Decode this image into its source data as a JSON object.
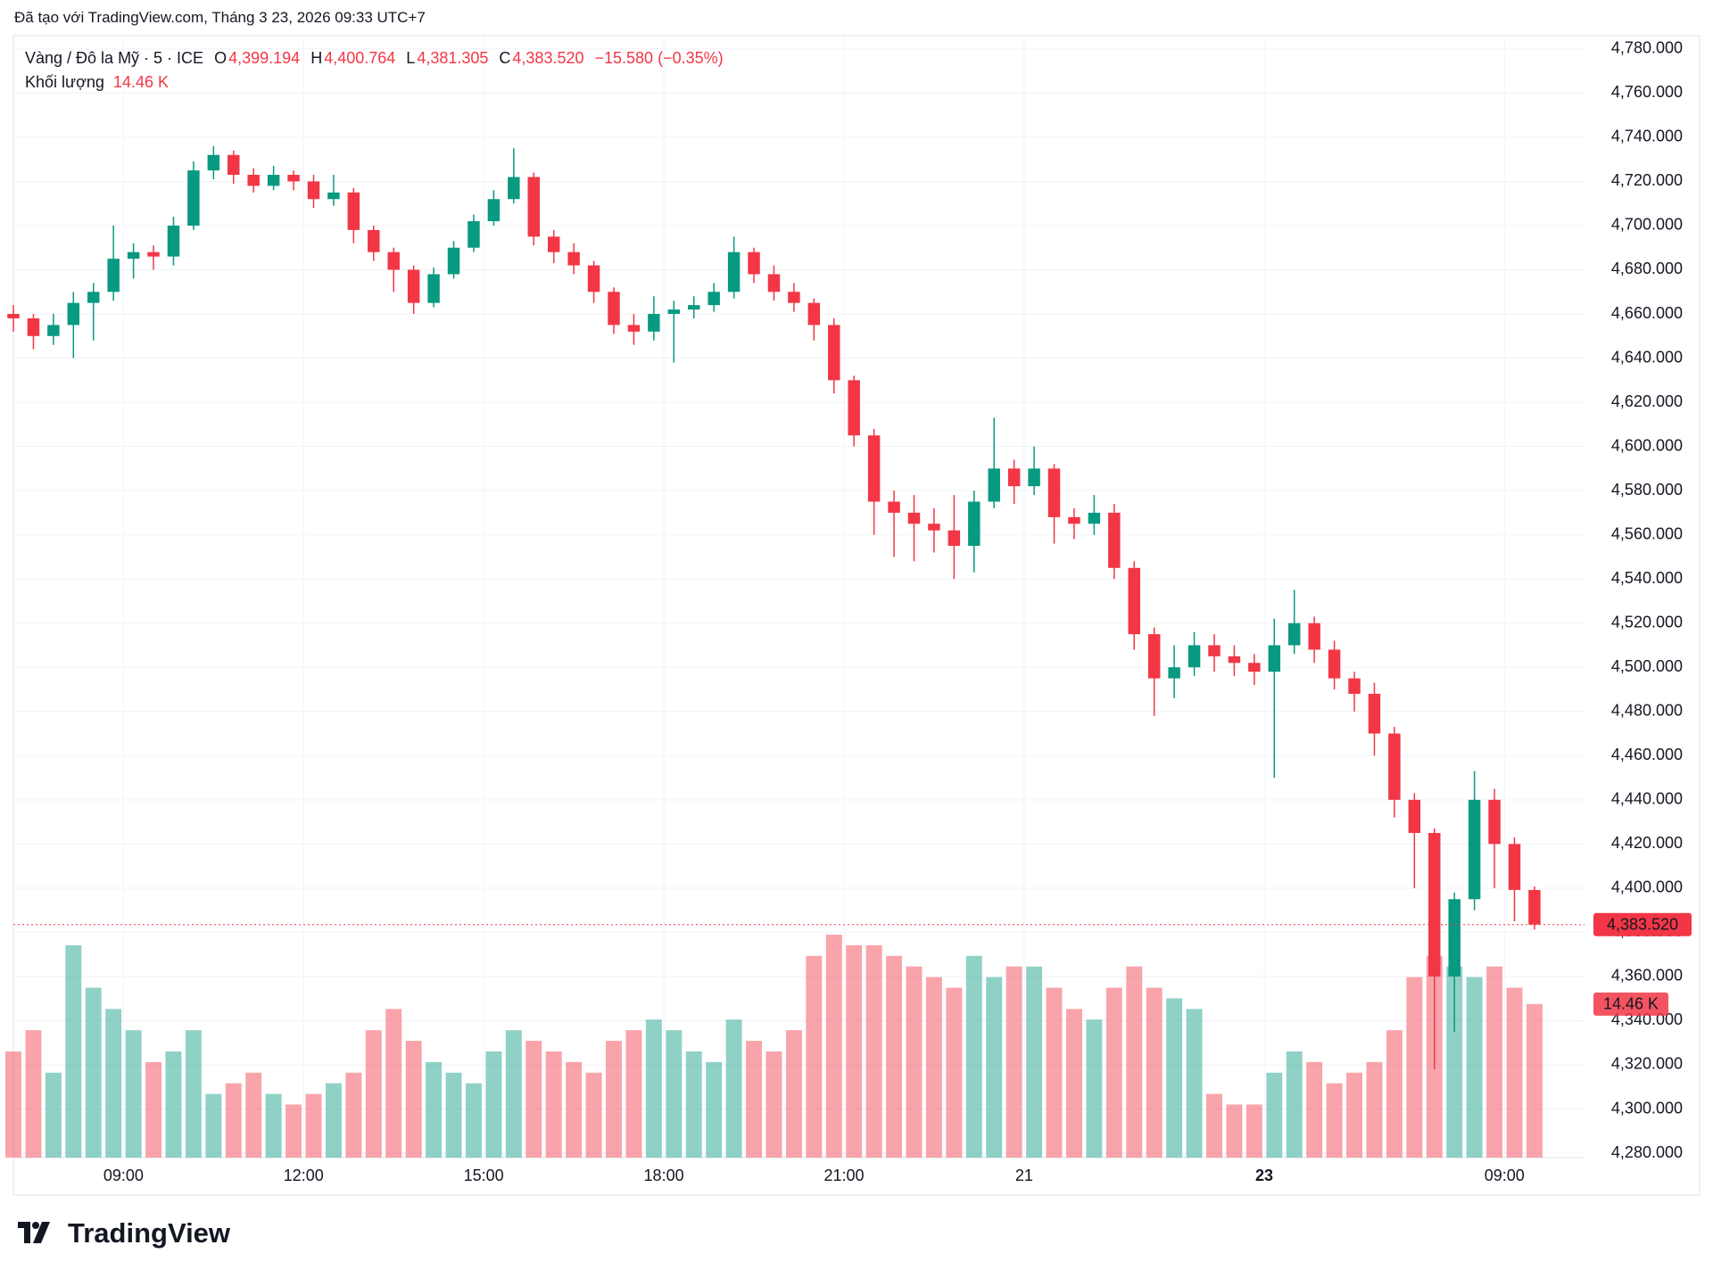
{
  "header": {
    "created": "Đã tạo với TradingView.com, Tháng 3 23, 2026 09:33 UTC+7",
    "symbol": "Vàng / Đô la Mỹ · 5 · ICE",
    "o_key": "O",
    "o": "4,399.194",
    "h_key": "H",
    "h": "4,400.764",
    "l_key": "L",
    "l": "4,381.305",
    "c_key": "C",
    "c": "4,383.520",
    "change": "−15.580 (−0.35%)",
    "volume_key": "Khối lượng",
    "volume": "14.46 K"
  },
  "chart_data": {
    "type": "candlestick",
    "up_color": "#089981",
    "down_color": "#f23645",
    "x": [
      0,
      4,
      8,
      12,
      16,
      20,
      24,
      28,
      32,
      36,
      40,
      44,
      48,
      52,
      56,
      60,
      64,
      68,
      72,
      76,
      80,
      84,
      88,
      92,
      96,
      100,
      104,
      108,
      112,
      116,
      120,
      124,
      128,
      132,
      136,
      140,
      144,
      148,
      152,
      156,
      160,
      164,
      168,
      172,
      176,
      180,
      184,
      188,
      192,
      196,
      200,
      204,
      208,
      212,
      216,
      220,
      224,
      228,
      232,
      236,
      240,
      244,
      248,
      252,
      256,
      260,
      264,
      268,
      272,
      276,
      280,
      284,
      288,
      292,
      296,
      300,
      304
    ],
    "open": [
      4660,
      4658,
      4650,
      4655,
      4665,
      4670,
      4685,
      4688,
      4686,
      4700,
      4725,
      4732,
      4723,
      4718,
      4723,
      4720,
      4712,
      4715,
      4698,
      4688,
      4680,
      4665,
      4678,
      4690,
      4702,
      4712,
      4722,
      4695,
      4688,
      4682,
      4670,
      4655,
      4652,
      4660,
      4662,
      4664,
      4670,
      4688,
      4678,
      4670,
      4665,
      4655,
      4630,
      4605,
      4575,
      4570,
      4565,
      4562,
      4555,
      4575,
      4590,
      4582,
      4590,
      4568,
      4565,
      4570,
      4545,
      4515,
      4495,
      4500,
      4510,
      4505,
      4502,
      4498,
      4510,
      4520,
      4508,
      4495,
      4488,
      4470,
      4440,
      4425,
      4360,
      4395,
      4440,
      4420,
      4399.194
    ],
    "high": [
      4664,
      4660,
      4660,
      4670,
      4674,
      4700,
      4692,
      4691,
      4704,
      4729,
      4736,
      4734,
      4726,
      4727,
      4725,
      4723,
      4723,
      4717,
      4700,
      4690,
      4682,
      4681,
      4693,
      4705,
      4716,
      4735,
      4724,
      4698,
      4692,
      4684,
      4672,
      4660,
      4668,
      4666,
      4668,
      4674,
      4695,
      4690,
      4682,
      4674,
      4667,
      4658,
      4632,
      4608,
      4580,
      4578,
      4572,
      4578,
      4580,
      4613,
      4594,
      4600,
      4592,
      4572,
      4578,
      4574,
      4548,
      4518,
      4510,
      4516,
      4515,
      4510,
      4506,
      4522,
      4535,
      4523,
      4512,
      4498,
      4493,
      4473,
      4443,
      4427,
      4398,
      4453,
      4445,
      4423,
      4400.764
    ],
    "low": [
      4652,
      4644,
      4646,
      4640,
      4648,
      4666,
      4676,
      4680,
      4682,
      4698,
      4721,
      4719,
      4715,
      4716,
      4716,
      4708,
      4709,
      4692,
      4684,
      4670,
      4660,
      4663,
      4676,
      4688,
      4700,
      4710,
      4691,
      4683,
      4678,
      4665,
      4651,
      4646,
      4648,
      4638,
      4658,
      4661,
      4667,
      4674,
      4666,
      4661,
      4648,
      4624,
      4600,
      4560,
      4550,
      4548,
      4552,
      4540,
      4543,
      4572,
      4574,
      4578,
      4556,
      4558,
      4560,
      4540,
      4508,
      4478,
      4486,
      4496,
      4498,
      4496,
      4492,
      4450,
      4506,
      4502,
      4490,
      4480,
      4460,
      4432,
      4400,
      4318,
      4335,
      4390,
      4400,
      4385,
      4381.305
    ],
    "close": [
      4658,
      4650,
      4655,
      4665,
      4670,
      4685,
      4688,
      4686,
      4700,
      4725,
      4732,
      4723,
      4718,
      4723,
      4720,
      4712,
      4715,
      4698,
      4688,
      4680,
      4665,
      4678,
      4690,
      4702,
      4712,
      4722,
      4695,
      4688,
      4682,
      4670,
      4655,
      4652,
      4660,
      4662,
      4664,
      4670,
      4688,
      4678,
      4670,
      4665,
      4655,
      4630,
      4605,
      4575,
      4570,
      4565,
      4562,
      4555,
      4575,
      4590,
      4582,
      4590,
      4568,
      4565,
      4570,
      4545,
      4515,
      4495,
      4500,
      4510,
      4505,
      4502,
      4498,
      4510,
      4520,
      4508,
      4495,
      4488,
      4470,
      4440,
      4425,
      4360,
      4395,
      4440,
      4420,
      4399.194,
      4383.52
    ],
    "volume": [
      10000,
      12000,
      8000,
      20000,
      16000,
      14000,
      12000,
      9000,
      10000,
      12000,
      6000,
      7000,
      8000,
      6000,
      5000,
      6000,
      7000,
      8000,
      12000,
      14000,
      11000,
      9000,
      8000,
      7000,
      10000,
      12000,
      11000,
      10000,
      9000,
      8000,
      11000,
      12000,
      13000,
      12000,
      10000,
      9000,
      13000,
      11000,
      10000,
      12000,
      19000,
      21000,
      20000,
      20000,
      19000,
      18000,
      17000,
      16000,
      19000,
      17000,
      18000,
      18000,
      16000,
      14000,
      13000,
      16000,
      18000,
      16000,
      15000,
      14000,
      6000,
      5000,
      5000,
      8000,
      10000,
      9000,
      7000,
      8000,
      9000,
      12000,
      17000,
      19000,
      18000,
      17000,
      18000,
      16000,
      14460
    ],
    "last_price_label": "4,383.520",
    "last_volume_label": "14.46 K",
    "xlim": [
      0,
      314
    ],
    "xticks": [
      {
        "value": 22,
        "label": "09:00"
      },
      {
        "value": 58,
        "label": "12:00"
      },
      {
        "value": 94,
        "label": "15:00"
      },
      {
        "value": 130,
        "label": "18:00"
      },
      {
        "value": 166,
        "label": "21:00"
      },
      {
        "value": 202,
        "label": "21"
      },
      {
        "value": 250,
        "label": "23"
      },
      {
        "value": 298,
        "label": "09:00"
      }
    ],
    "ylim": [
      4278,
      4786
    ],
    "yticks": [
      {
        "value": 4280,
        "label": "4,280.000"
      },
      {
        "value": 4300,
        "label": "4,300.000"
      },
      {
        "value": 4320,
        "label": "4,320.000"
      },
      {
        "value": 4340,
        "label": "4,340.000"
      },
      {
        "value": 4360,
        "label": "4,360.000"
      },
      {
        "value": 4380,
        "label": "4,380.000"
      },
      {
        "value": 4400,
        "label": "4,400.000"
      },
      {
        "value": 4420,
        "label": "4,420.000"
      },
      {
        "value": 4440,
        "label": "4,440.000"
      },
      {
        "value": 4460,
        "label": "4,460.000"
      },
      {
        "value": 4480,
        "label": "4,480.000"
      },
      {
        "value": 4500,
        "label": "4,500.000"
      },
      {
        "value": 4520,
        "label": "4,520.000"
      },
      {
        "value": 4540,
        "label": "4,540.000"
      },
      {
        "value": 4560,
        "label": "4,560.000"
      },
      {
        "value": 4580,
        "label": "4,580.000"
      },
      {
        "value": 4600,
        "label": "4,600.000"
      },
      {
        "value": 4620,
        "label": "4,620.000"
      },
      {
        "value": 4640,
        "label": "4,640.000"
      },
      {
        "value": 4660,
        "label": "4,660.000"
      },
      {
        "value": 4680,
        "label": "4,680.000"
      },
      {
        "value": 4700,
        "label": "4,700.000"
      },
      {
        "value": 4720,
        "label": "4,720.000"
      },
      {
        "value": 4740,
        "label": "4,740.000"
      },
      {
        "value": 4760,
        "label": "4,760.000"
      },
      {
        "value": 4780,
        "label": "4,780.000"
      }
    ],
    "grid": true
  },
  "brand": "TradingView"
}
